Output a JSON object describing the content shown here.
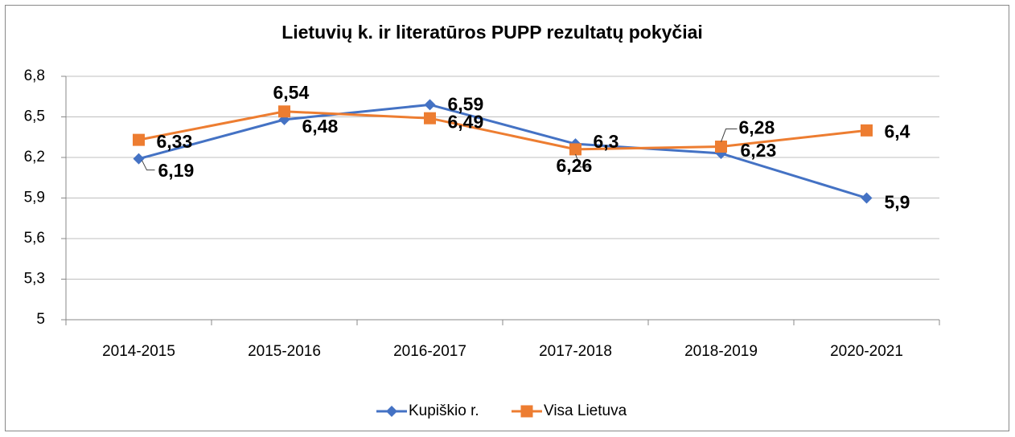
{
  "chart_data": {
    "type": "line",
    "title": "Lietuvių k. ir literatūros PUPP rezultatų pokyčiai",
    "categories": [
      "2014-2015",
      "2015-2016",
      "2016-2017",
      "2017-2018",
      "2018-2019",
      "2020-2021"
    ],
    "series": [
      {
        "name": "Kupiškio r.",
        "color": "#4472c4",
        "marker": "diamond",
        "values": [
          6.19,
          6.48,
          6.59,
          6.3,
          6.23,
          5.9
        ],
        "value_labels": [
          "6,19",
          "6,48",
          "6,59",
          "6,3",
          "6,23",
          "5,9"
        ]
      },
      {
        "name": "Visa Lietuva",
        "color": "#ed7d31",
        "marker": "square",
        "values": [
          6.33,
          6.54,
          6.49,
          6.26,
          6.28,
          6.4
        ],
        "value_labels": [
          "6,33",
          "6,54",
          "6,49",
          "6,26",
          "6,28",
          "6,4"
        ]
      }
    ],
    "ylim": [
      5,
      6.8
    ],
    "yticks": [
      {
        "value": 5,
        "label": "5"
      },
      {
        "value": 5.3,
        "label": "5,3"
      },
      {
        "value": 5.6,
        "label": "5,6"
      },
      {
        "value": 5.9,
        "label": "5,9"
      },
      {
        "value": 6.2,
        "label": "6,2"
      },
      {
        "value": 6.5,
        "label": "6,5"
      },
      {
        "value": 6.8,
        "label": "6,8"
      }
    ],
    "grid": true,
    "legend": "bottom"
  }
}
